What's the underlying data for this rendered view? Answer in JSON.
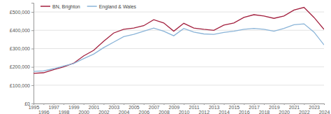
{
  "chart_data": {
    "type": "line",
    "x": [
      1995,
      1996,
      1997,
      1998,
      1999,
      2000,
      2001,
      2002,
      2003,
      2004,
      2005,
      2006,
      2007,
      2008,
      2009,
      2010,
      2011,
      2012,
      2013,
      2014,
      2015,
      2016,
      2017,
      2018,
      2019,
      2020,
      2021,
      2022,
      2023,
      2024
    ],
    "series": [
      {
        "name": "BN, Brighton",
        "color": "#a3213f",
        "values": [
          165000,
          168000,
          185000,
          200000,
          220000,
          260000,
          290000,
          340000,
          385000,
          405000,
          412000,
          425000,
          458000,
          440000,
          395000,
          438000,
          412000,
          405000,
          400000,
          428000,
          440000,
          470000,
          485000,
          478000,
          465000,
          478000,
          510000,
          525000,
          470000,
          405000
        ]
      },
      {
        "name": "England & Wales",
        "color": "#8ab4d8",
        "values": [
          175000,
          178000,
          190000,
          205000,
          218000,
          245000,
          270000,
          305000,
          335000,
          365000,
          378000,
          395000,
          412000,
          395000,
          370000,
          410000,
          390000,
          380000,
          378000,
          388000,
          395000,
          405000,
          410000,
          405000,
          395000,
          410000,
          430000,
          435000,
          390000,
          320000
        ]
      }
    ],
    "xlim": [
      1995,
      2024
    ],
    "xticks": [
      1995,
      1996,
      1997,
      1998,
      1999,
      2000,
      2001,
      2002,
      2003,
      2004,
      2005,
      2006,
      2007,
      2008,
      2009,
      2010,
      2011,
      2012,
      2013,
      2014,
      2015,
      2016,
      2017,
      2018,
      2019,
      2020,
      2021,
      2022,
      2023,
      2024
    ],
    "ylim": [
      0,
      550000
    ],
    "yticks": [
      {
        "value": 0,
        "label": "£0"
      },
      {
        "value": 100000,
        "label": "£100,000"
      },
      {
        "value": 200000,
        "label": "£200,000"
      },
      {
        "value": 300000,
        "label": "£300,000"
      },
      {
        "value": 400000,
        "label": "£400,000"
      },
      {
        "value": 500000,
        "label": "£500,000"
      }
    ],
    "grid": true,
    "legend": "top-left"
  }
}
